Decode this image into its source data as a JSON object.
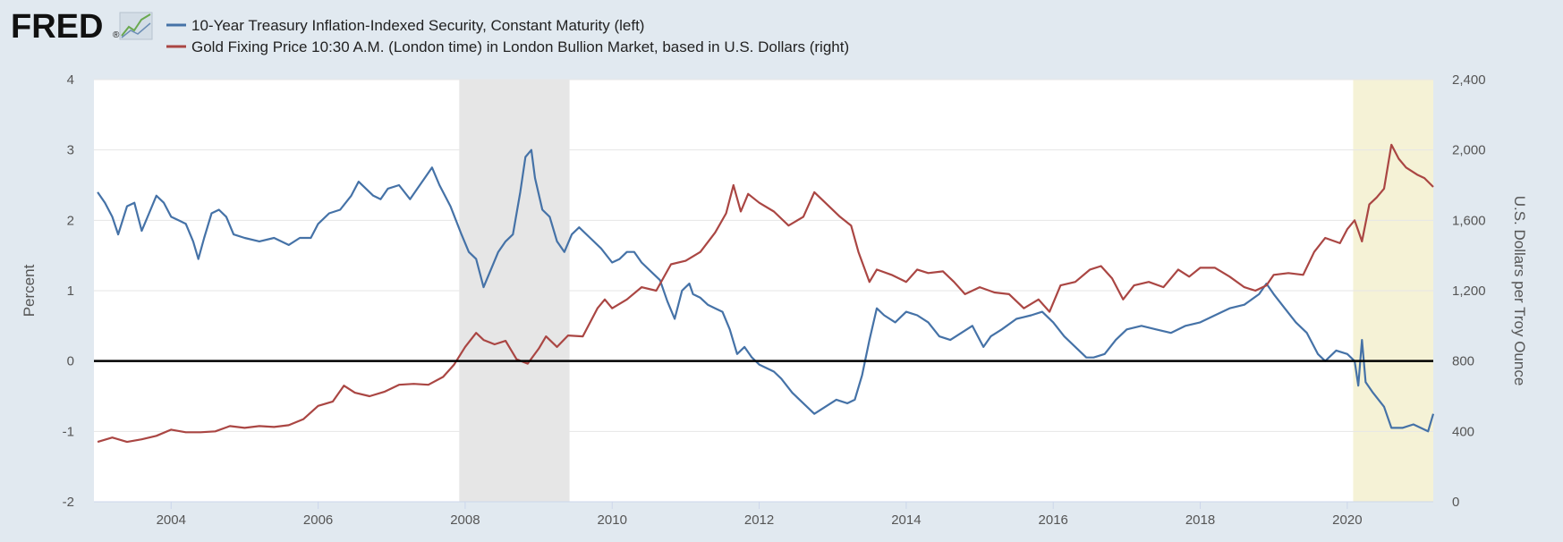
{
  "logo": {
    "text": "FRED",
    "registered": "®"
  },
  "chart_data": {
    "type": "line",
    "legend": [
      "10-Year Treasury Inflation-Indexed Security, Constant Maturity (left)",
      "Gold Fixing Price 10:30 A.M. (London time) in London Bullion Market, based in U.S. Dollars (right)"
    ],
    "x_range": [
      2002.95,
      2021.17
    ],
    "x_ticks": [
      2004,
      2006,
      2008,
      2010,
      2012,
      2014,
      2016,
      2018,
      2020
    ],
    "left_axis": {
      "label": "Percent",
      "range": [
        -2,
        4
      ],
      "ticks": [
        -2,
        -1,
        0,
        1,
        2,
        3,
        4
      ],
      "tick_labels": [
        "-2",
        "-1",
        "0",
        "1",
        "2",
        "3",
        "4"
      ]
    },
    "right_axis": {
      "label": "U.S. Dollars per Troy Ounce",
      "range": [
        0,
        2400
      ],
      "ticks": [
        0,
        400,
        800,
        1200,
        1600,
        2000,
        2400
      ],
      "tick_labels": [
        "0",
        "400",
        "800",
        "1,200",
        "1,600",
        "2,000",
        "2,400"
      ]
    },
    "zero_line": 0,
    "shaded_periods": [
      {
        "name": "recession-2008",
        "start": 2007.92,
        "end": 2009.42,
        "color": "#e6e6e6"
      },
      {
        "name": "highlight-2020",
        "start": 2020.08,
        "end": 2021.17,
        "color": "#f5f2d6"
      }
    ],
    "series": [
      {
        "name": "10-Year Treasury Inflation-Indexed Security, Constant Maturity",
        "axis": "left",
        "color": "#4572a7",
        "points": [
          [
            2003.0,
            2.4
          ],
          [
            2003.1,
            2.25
          ],
          [
            2003.2,
            2.05
          ],
          [
            2003.28,
            1.8
          ],
          [
            2003.4,
            2.2
          ],
          [
            2003.5,
            2.25
          ],
          [
            2003.6,
            1.85
          ],
          [
            2003.7,
            2.1
          ],
          [
            2003.8,
            2.35
          ],
          [
            2003.9,
            2.25
          ],
          [
            2004.0,
            2.05
          ],
          [
            2004.1,
            2.0
          ],
          [
            2004.2,
            1.95
          ],
          [
            2004.3,
            1.7
          ],
          [
            2004.37,
            1.45
          ],
          [
            2004.45,
            1.75
          ],
          [
            2004.55,
            2.1
          ],
          [
            2004.65,
            2.15
          ],
          [
            2004.75,
            2.05
          ],
          [
            2004.85,
            1.8
          ],
          [
            2005.0,
            1.75
          ],
          [
            2005.2,
            1.7
          ],
          [
            2005.4,
            1.75
          ],
          [
            2005.6,
            1.65
          ],
          [
            2005.75,
            1.75
          ],
          [
            2005.9,
            1.75
          ],
          [
            2006.0,
            1.95
          ],
          [
            2006.15,
            2.1
          ],
          [
            2006.3,
            2.15
          ],
          [
            2006.45,
            2.35
          ],
          [
            2006.55,
            2.55
          ],
          [
            2006.65,
            2.45
          ],
          [
            2006.75,
            2.35
          ],
          [
            2006.85,
            2.3
          ],
          [
            2006.95,
            2.45
          ],
          [
            2007.1,
            2.5
          ],
          [
            2007.25,
            2.3
          ],
          [
            2007.35,
            2.45
          ],
          [
            2007.45,
            2.6
          ],
          [
            2007.55,
            2.75
          ],
          [
            2007.65,
            2.5
          ],
          [
            2007.8,
            2.2
          ],
          [
            2007.95,
            1.8
          ],
          [
            2008.05,
            1.55
          ],
          [
            2008.15,
            1.45
          ],
          [
            2008.25,
            1.05
          ],
          [
            2008.35,
            1.3
          ],
          [
            2008.45,
            1.55
          ],
          [
            2008.55,
            1.7
          ],
          [
            2008.65,
            1.8
          ],
          [
            2008.75,
            2.4
          ],
          [
            2008.82,
            2.9
          ],
          [
            2008.9,
            3.0
          ],
          [
            2008.95,
            2.6
          ],
          [
            2009.05,
            2.15
          ],
          [
            2009.15,
            2.05
          ],
          [
            2009.25,
            1.7
          ],
          [
            2009.35,
            1.55
          ],
          [
            2009.45,
            1.8
          ],
          [
            2009.55,
            1.9
          ],
          [
            2009.7,
            1.75
          ],
          [
            2009.85,
            1.6
          ],
          [
            2010.0,
            1.4
          ],
          [
            2010.1,
            1.45
          ],
          [
            2010.2,
            1.55
          ],
          [
            2010.3,
            1.55
          ],
          [
            2010.4,
            1.4
          ],
          [
            2010.55,
            1.25
          ],
          [
            2010.65,
            1.15
          ],
          [
            2010.75,
            0.85
          ],
          [
            2010.85,
            0.6
          ],
          [
            2010.95,
            1.0
          ],
          [
            2011.05,
            1.1
          ],
          [
            2011.1,
            0.95
          ],
          [
            2011.2,
            0.9
          ],
          [
            2011.3,
            0.8
          ],
          [
            2011.4,
            0.75
          ],
          [
            2011.5,
            0.7
          ],
          [
            2011.6,
            0.45
          ],
          [
            2011.7,
            0.1
          ],
          [
            2011.8,
            0.2
          ],
          [
            2011.9,
            0.05
          ],
          [
            2012.0,
            -0.05
          ],
          [
            2012.2,
            -0.15
          ],
          [
            2012.3,
            -0.25
          ],
          [
            2012.45,
            -0.45
          ],
          [
            2012.6,
            -0.6
          ],
          [
            2012.75,
            -0.75
          ],
          [
            2012.9,
            -0.65
          ],
          [
            2013.05,
            -0.55
          ],
          [
            2013.2,
            -0.6
          ],
          [
            2013.3,
            -0.55
          ],
          [
            2013.4,
            -0.2
          ],
          [
            2013.5,
            0.3
          ],
          [
            2013.6,
            0.75
          ],
          [
            2013.7,
            0.65
          ],
          [
            2013.85,
            0.55
          ],
          [
            2014.0,
            0.7
          ],
          [
            2014.15,
            0.65
          ],
          [
            2014.3,
            0.55
          ],
          [
            2014.45,
            0.35
          ],
          [
            2014.6,
            0.3
          ],
          [
            2014.75,
            0.4
          ],
          [
            2014.9,
            0.5
          ],
          [
            2015.05,
            0.2
          ],
          [
            2015.15,
            0.35
          ],
          [
            2015.3,
            0.45
          ],
          [
            2015.5,
            0.6
          ],
          [
            2015.7,
            0.65
          ],
          [
            2015.85,
            0.7
          ],
          [
            2016.0,
            0.55
          ],
          [
            2016.15,
            0.35
          ],
          [
            2016.3,
            0.2
          ],
          [
            2016.45,
            0.05
          ],
          [
            2016.55,
            0.05
          ],
          [
            2016.7,
            0.1
          ],
          [
            2016.85,
            0.3
          ],
          [
            2017.0,
            0.45
          ],
          [
            2017.2,
            0.5
          ],
          [
            2017.4,
            0.45
          ],
          [
            2017.6,
            0.4
          ],
          [
            2017.8,
            0.5
          ],
          [
            2018.0,
            0.55
          ],
          [
            2018.2,
            0.65
          ],
          [
            2018.4,
            0.75
          ],
          [
            2018.6,
            0.8
          ],
          [
            2018.8,
            0.95
          ],
          [
            2018.9,
            1.1
          ],
          [
            2019.0,
            0.95
          ],
          [
            2019.15,
            0.75
          ],
          [
            2019.3,
            0.55
          ],
          [
            2019.45,
            0.4
          ],
          [
            2019.6,
            0.1
          ],
          [
            2019.7,
            0.0
          ],
          [
            2019.85,
            0.15
          ],
          [
            2020.0,
            0.1
          ],
          [
            2020.1,
            0.0
          ],
          [
            2020.15,
            -0.35
          ],
          [
            2020.2,
            0.3
          ],
          [
            2020.25,
            -0.3
          ],
          [
            2020.35,
            -0.45
          ],
          [
            2020.5,
            -0.65
          ],
          [
            2020.6,
            -0.95
          ],
          [
            2020.75,
            -0.95
          ],
          [
            2020.9,
            -0.9
          ],
          [
            2021.0,
            -0.95
          ],
          [
            2021.1,
            -1.0
          ],
          [
            2021.17,
            -0.75
          ]
        ]
      },
      {
        "name": "Gold Fixing Price 10:30 A.M. (London time) in London Bullion Market, based in U.S. Dollars",
        "axis": "right",
        "color": "#aa4643",
        "points": [
          [
            2003.0,
            340
          ],
          [
            2003.2,
            365
          ],
          [
            2003.4,
            340
          ],
          [
            2003.6,
            355
          ],
          [
            2003.8,
            375
          ],
          [
            2004.0,
            410
          ],
          [
            2004.2,
            395
          ],
          [
            2004.4,
            395
          ],
          [
            2004.6,
            400
          ],
          [
            2004.8,
            430
          ],
          [
            2005.0,
            420
          ],
          [
            2005.2,
            430
          ],
          [
            2005.4,
            425
          ],
          [
            2005.6,
            435
          ],
          [
            2005.8,
            470
          ],
          [
            2006.0,
            545
          ],
          [
            2006.2,
            570
          ],
          [
            2006.35,
            660
          ],
          [
            2006.5,
            620
          ],
          [
            2006.7,
            600
          ],
          [
            2006.9,
            625
          ],
          [
            2007.1,
            665
          ],
          [
            2007.3,
            670
          ],
          [
            2007.5,
            665
          ],
          [
            2007.7,
            710
          ],
          [
            2007.85,
            780
          ],
          [
            2008.0,
            880
          ],
          [
            2008.15,
            960
          ],
          [
            2008.25,
            920
          ],
          [
            2008.4,
            895
          ],
          [
            2008.55,
            915
          ],
          [
            2008.7,
            810
          ],
          [
            2008.85,
            785
          ],
          [
            2009.0,
            870
          ],
          [
            2009.1,
            940
          ],
          [
            2009.25,
            880
          ],
          [
            2009.4,
            945
          ],
          [
            2009.6,
            940
          ],
          [
            2009.8,
            1100
          ],
          [
            2009.9,
            1150
          ],
          [
            2010.0,
            1100
          ],
          [
            2010.2,
            1150
          ],
          [
            2010.4,
            1220
          ],
          [
            2010.6,
            1200
          ],
          [
            2010.8,
            1350
          ],
          [
            2011.0,
            1370
          ],
          [
            2011.2,
            1420
          ],
          [
            2011.4,
            1530
          ],
          [
            2011.55,
            1640
          ],
          [
            2011.65,
            1800
          ],
          [
            2011.75,
            1650
          ],
          [
            2011.85,
            1750
          ],
          [
            2012.0,
            1700
          ],
          [
            2012.2,
            1650
          ],
          [
            2012.4,
            1570
          ],
          [
            2012.6,
            1620
          ],
          [
            2012.75,
            1760
          ],
          [
            2012.9,
            1700
          ],
          [
            2013.1,
            1620
          ],
          [
            2013.25,
            1570
          ],
          [
            2013.35,
            1420
          ],
          [
            2013.5,
            1250
          ],
          [
            2013.6,
            1320
          ],
          [
            2013.8,
            1290
          ],
          [
            2014.0,
            1250
          ],
          [
            2014.15,
            1320
          ],
          [
            2014.3,
            1300
          ],
          [
            2014.5,
            1310
          ],
          [
            2014.65,
            1250
          ],
          [
            2014.8,
            1180
          ],
          [
            2015.0,
            1220
          ],
          [
            2015.2,
            1190
          ],
          [
            2015.4,
            1180
          ],
          [
            2015.6,
            1100
          ],
          [
            2015.8,
            1150
          ],
          [
            2015.95,
            1080
          ],
          [
            2016.1,
            1230
          ],
          [
            2016.3,
            1250
          ],
          [
            2016.5,
            1320
          ],
          [
            2016.65,
            1340
          ],
          [
            2016.8,
            1270
          ],
          [
            2016.95,
            1150
          ],
          [
            2017.1,
            1230
          ],
          [
            2017.3,
            1250
          ],
          [
            2017.5,
            1220
          ],
          [
            2017.7,
            1320
          ],
          [
            2017.85,
            1280
          ],
          [
            2018.0,
            1330
          ],
          [
            2018.2,
            1330
          ],
          [
            2018.4,
            1280
          ],
          [
            2018.6,
            1220
          ],
          [
            2018.75,
            1200
          ],
          [
            2018.9,
            1230
          ],
          [
            2019.0,
            1290
          ],
          [
            2019.2,
            1300
          ],
          [
            2019.4,
            1290
          ],
          [
            2019.55,
            1420
          ],
          [
            2019.7,
            1500
          ],
          [
            2019.9,
            1470
          ],
          [
            2020.0,
            1550
          ],
          [
            2020.1,
            1600
          ],
          [
            2020.2,
            1480
          ],
          [
            2020.3,
            1690
          ],
          [
            2020.4,
            1730
          ],
          [
            2020.5,
            1780
          ],
          [
            2020.6,
            2030
          ],
          [
            2020.7,
            1950
          ],
          [
            2020.8,
            1900
          ],
          [
            2020.95,
            1860
          ],
          [
            2021.05,
            1840
          ],
          [
            2021.17,
            1790
          ]
        ]
      }
    ]
  }
}
